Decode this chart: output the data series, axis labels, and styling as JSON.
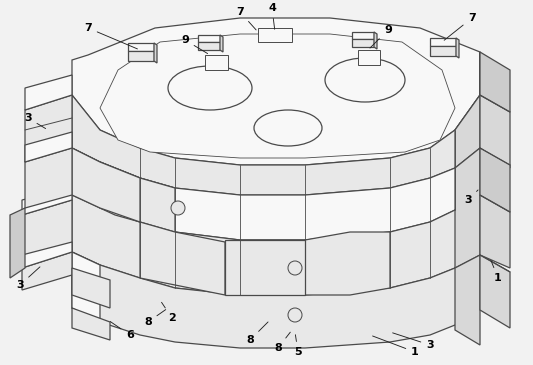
{
  "bg": "#f2f2f2",
  "lc": "#4a4a4a",
  "face_top": "#f8f8f8",
  "face_front": "#e8e8e8",
  "face_right": "#d8d8d8",
  "face_dark": "#cccccc",
  "figsize": [
    5.33,
    3.65
  ],
  "dpi": 100
}
